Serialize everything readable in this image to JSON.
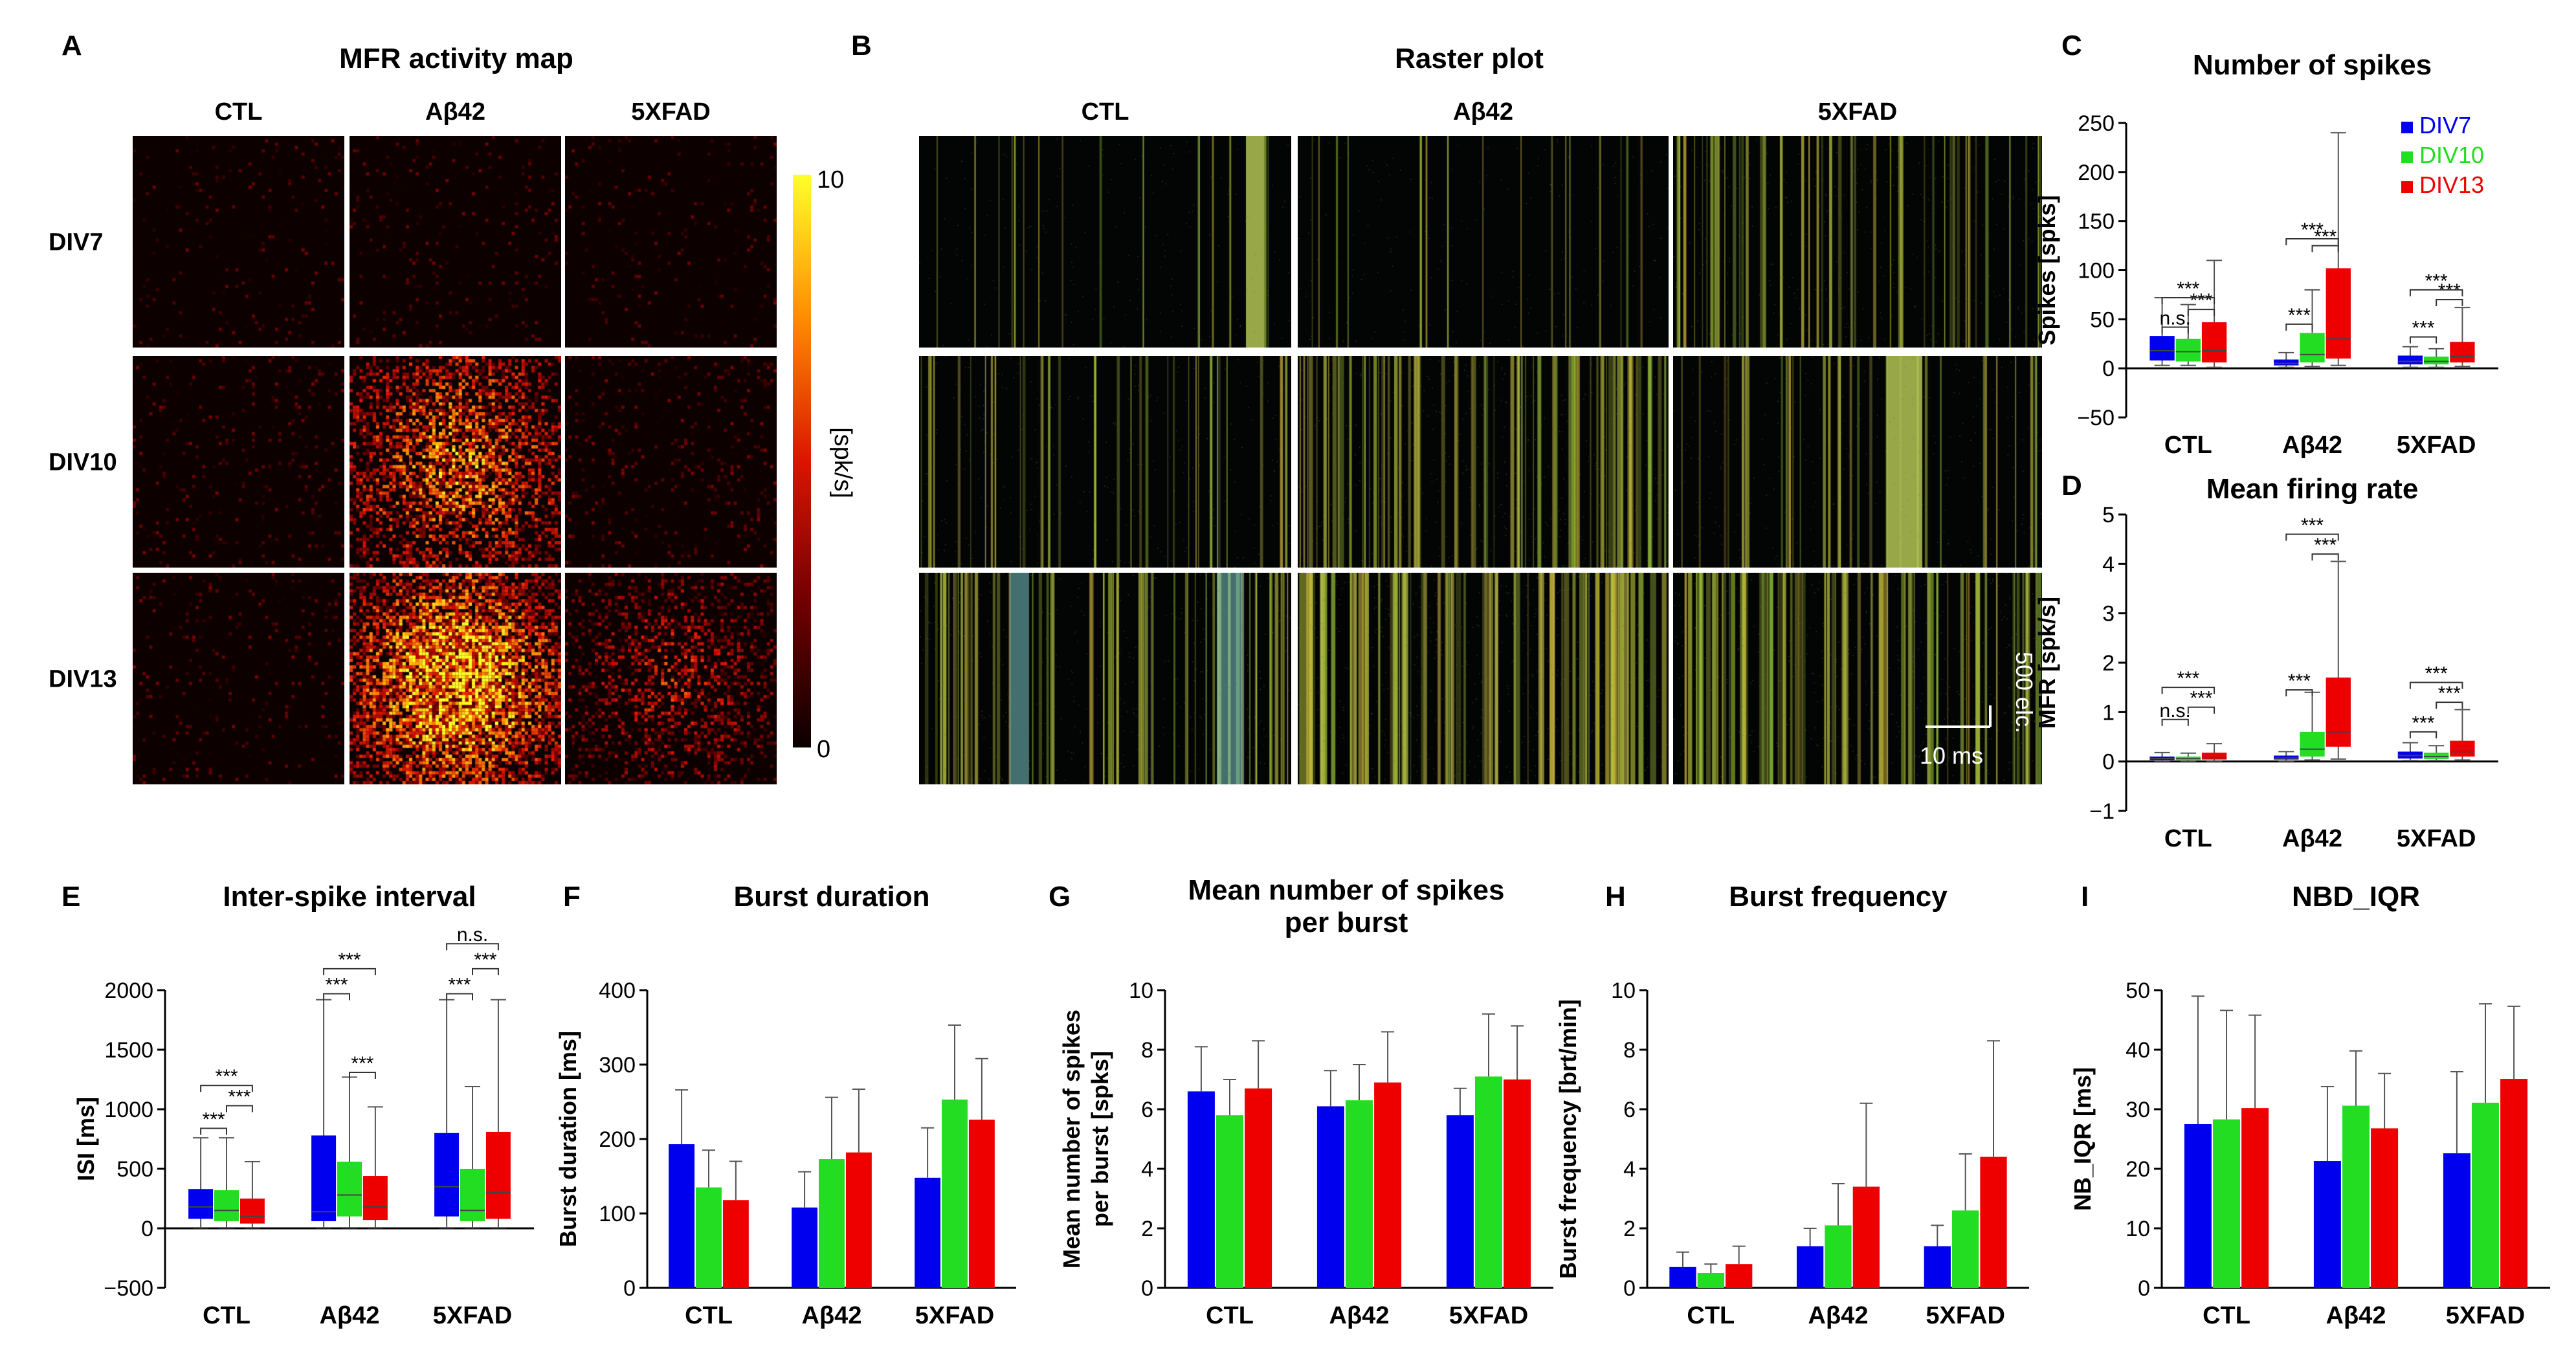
{
  "panels": {
    "A": {
      "letter": "A",
      "title": "MFR activity map",
      "cols": [
        "CTL",
        "Aβ42",
        "5XFAD"
      ],
      "rows": [
        "DIV7",
        "DIV10",
        "DIV13"
      ],
      "colorbar": {
        "min": "0",
        "max": "10",
        "label": "[spk/s]"
      },
      "density": [
        [
          0.02,
          0.03,
          0.02
        ],
        [
          0.04,
          0.55,
          0.06
        ],
        [
          0.04,
          0.85,
          0.35
        ]
      ]
    },
    "B": {
      "letter": "B",
      "title": "Raster plot",
      "cols": [
        "CTL",
        "Aβ42",
        "5XFAD"
      ],
      "scalebar_x": "10 ms",
      "scalebar_y": "500 elc."
    },
    "C": {
      "letter": "C"
    },
    "D": {
      "letter": "D"
    },
    "E": {
      "letter": "E"
    },
    "F": {
      "letter": "F"
    },
    "G": {
      "letter": "G"
    },
    "H": {
      "letter": "H"
    },
    "I": {
      "letter": "I"
    }
  },
  "colors": {
    "DIV7": "#0000ee",
    "DIV10": "#22dd22",
    "DIV13": "#ee0000"
  },
  "chart_data": [
    {
      "id": "C",
      "type": "box",
      "title": "Number of spikes",
      "ylabel": "Spikes [spks]",
      "ylim": [
        -50,
        250
      ],
      "yticks": [
        -50,
        0,
        50,
        100,
        150,
        200,
        250
      ],
      "categories": [
        "CTL",
        "Aβ42",
        "5XFAD"
      ],
      "legend": {
        "entries": [
          "DIV7",
          "DIV10",
          "DIV13"
        ],
        "placement": "top-right"
      },
      "series": [
        {
          "name": "DIV7",
          "boxes": [
            {
              "whislo": 3,
              "q1": 8,
              "med": 18,
              "q3": 33,
              "whishi": 72
            },
            {
              "whislo": 1,
              "q1": 3,
              "med": 5,
              "q3": 9,
              "whishi": 16
            },
            {
              "whislo": 1,
              "q1": 4,
              "med": 7,
              "q3": 13,
              "whishi": 22
            }
          ]
        },
        {
          "name": "DIV10",
          "boxes": [
            {
              "whislo": 3,
              "q1": 7,
              "med": 17,
              "q3": 30,
              "whishi": 65
            },
            {
              "whislo": 2,
              "q1": 6,
              "med": 14,
              "q3": 36,
              "whishi": 80
            },
            {
              "whislo": 1,
              "q1": 4,
              "med": 7,
              "q3": 12,
              "whishi": 20
            }
          ]
        },
        {
          "name": "DIV13",
          "boxes": [
            {
              "whislo": 1,
              "q1": 6,
              "med": 18,
              "q3": 47,
              "whishi": 110
            },
            {
              "whislo": 3,
              "q1": 10,
              "med": 30,
              "q3": 102,
              "whishi": 240
            },
            {
              "whislo": 2,
              "q1": 6,
              "med": 12,
              "q3": 27,
              "whishi": 62
            }
          ]
        }
      ],
      "annotations": [
        {
          "cat": 0,
          "from": 0,
          "to": 1,
          "label": "n.s.",
          "y": 42
        },
        {
          "cat": 0,
          "from": 1,
          "to": 2,
          "label": "***",
          "y": 60
        },
        {
          "cat": 0,
          "from": 0,
          "to": 2,
          "label": "***",
          "y": 72
        },
        {
          "cat": 1,
          "from": 0,
          "to": 1,
          "label": "***",
          "y": 45
        },
        {
          "cat": 1,
          "from": 1,
          "to": 2,
          "label": "***",
          "y": 125
        },
        {
          "cat": 1,
          "from": 0,
          "to": 2,
          "label": "***",
          "y": 132
        },
        {
          "cat": 2,
          "from": 0,
          "to": 1,
          "label": "***",
          "y": 32
        },
        {
          "cat": 2,
          "from": 1,
          "to": 2,
          "label": "***",
          "y": 70
        },
        {
          "cat": 2,
          "from": 0,
          "to": 2,
          "label": "***",
          "y": 80
        }
      ]
    },
    {
      "id": "D",
      "type": "box",
      "title": "Mean firing rate",
      "ylabel": "MFR [spk/s]",
      "ylim": [
        -1,
        5
      ],
      "yticks": [
        -1,
        0,
        1,
        2,
        3,
        4,
        5
      ],
      "categories": [
        "CTL",
        "Aβ42",
        "5XFAD"
      ],
      "series": [
        {
          "name": "DIV7",
          "boxes": [
            {
              "whislo": 0.01,
              "q1": 0.03,
              "med": 0.06,
              "q3": 0.1,
              "whishi": 0.18
            },
            {
              "whislo": 0.01,
              "q1": 0.04,
              "med": 0.07,
              "q3": 0.12,
              "whishi": 0.2
            },
            {
              "whislo": 0.02,
              "q1": 0.06,
              "med": 0.12,
              "q3": 0.2,
              "whishi": 0.38
            }
          ]
        },
        {
          "name": "DIV10",
          "boxes": [
            {
              "whislo": 0.01,
              "q1": 0.03,
              "med": 0.06,
              "q3": 0.1,
              "whishi": 0.17
            },
            {
              "whislo": 0.03,
              "q1": 0.1,
              "med": 0.25,
              "q3": 0.6,
              "whishi": 1.4
            },
            {
              "whislo": 0.02,
              "q1": 0.05,
              "med": 0.1,
              "q3": 0.18,
              "whishi": 0.32
            }
          ]
        },
        {
          "name": "DIV13",
          "boxes": [
            {
              "whislo": 0.01,
              "q1": 0.04,
              "med": 0.08,
              "q3": 0.18,
              "whishi": 0.36
            },
            {
              "whislo": 0.05,
              "q1": 0.3,
              "med": 0.6,
              "q3": 1.7,
              "whishi": 4.05
            },
            {
              "whislo": 0.03,
              "q1": 0.1,
              "med": 0.2,
              "q3": 0.42,
              "whishi": 1.05
            }
          ]
        }
      ],
      "annotations": [
        {
          "cat": 0,
          "from": 0,
          "to": 1,
          "label": "n.s.",
          "y": 0.85
        },
        {
          "cat": 0,
          "from": 1,
          "to": 2,
          "label": "***",
          "y": 1.1
        },
        {
          "cat": 0,
          "from": 0,
          "to": 2,
          "label": "***",
          "y": 1.5
        },
        {
          "cat": 1,
          "from": 0,
          "to": 1,
          "label": "***",
          "y": 1.45
        },
        {
          "cat": 1,
          "from": 1,
          "to": 2,
          "label": "***",
          "y": 4.2
        },
        {
          "cat": 1,
          "from": 0,
          "to": 2,
          "label": "***",
          "y": 4.6
        },
        {
          "cat": 2,
          "from": 0,
          "to": 1,
          "label": "***",
          "y": 0.6
        },
        {
          "cat": 2,
          "from": 1,
          "to": 2,
          "label": "***",
          "y": 1.2
        },
        {
          "cat": 2,
          "from": 0,
          "to": 2,
          "label": "***",
          "y": 1.6
        }
      ]
    },
    {
      "id": "E",
      "type": "box",
      "title": "Inter-spike interval",
      "ylabel": "ISI [ms]",
      "ylim": [
        -500,
        2000
      ],
      "yticks": [
        -500,
        0,
        500,
        1000,
        1500,
        2000
      ],
      "categories": [
        "CTL",
        "Aβ42",
        "5XFAD"
      ],
      "series": [
        {
          "name": "DIV7",
          "boxes": [
            {
              "whislo": 5,
              "q1": 80,
              "med": 180,
              "q3": 330,
              "whishi": 760
            },
            {
              "whislo": 5,
              "q1": 60,
              "med": 140,
              "q3": 780,
              "whishi": 1920
            },
            {
              "whislo": 5,
              "q1": 100,
              "med": 350,
              "q3": 800,
              "whishi": 1920
            }
          ]
        },
        {
          "name": "DIV10",
          "boxes": [
            {
              "whislo": 5,
              "q1": 60,
              "med": 150,
              "q3": 320,
              "whishi": 760
            },
            {
              "whislo": 5,
              "q1": 100,
              "med": 280,
              "q3": 560,
              "whishi": 1270
            },
            {
              "whislo": 5,
              "q1": 60,
              "med": 150,
              "q3": 500,
              "whishi": 1190
            }
          ]
        },
        {
          "name": "DIV13",
          "boxes": [
            {
              "whislo": 5,
              "q1": 40,
              "med": 100,
              "q3": 250,
              "whishi": 560
            },
            {
              "whislo": 5,
              "q1": 70,
              "med": 180,
              "q3": 440,
              "whishi": 1020
            },
            {
              "whislo": 5,
              "q1": 80,
              "med": 300,
              "q3": 810,
              "whishi": 1920
            }
          ]
        }
      ],
      "annotations": [
        {
          "cat": 0,
          "from": 0,
          "to": 1,
          "label": "***",
          "y": 840
        },
        {
          "cat": 0,
          "from": 1,
          "to": 2,
          "label": "***",
          "y": 1030
        },
        {
          "cat": 0,
          "from": 0,
          "to": 2,
          "label": "***",
          "y": 1200
        },
        {
          "cat": 1,
          "from": 0,
          "to": 1,
          "label": "***",
          "y": 1970
        },
        {
          "cat": 1,
          "from": 1,
          "to": 2,
          "label": "***",
          "y": 1310
        },
        {
          "cat": 1,
          "from": 0,
          "to": 2,
          "label": "***",
          "y": 2180
        },
        {
          "cat": 2,
          "from": 0,
          "to": 1,
          "label": "***",
          "y": 1970
        },
        {
          "cat": 2,
          "from": 1,
          "to": 2,
          "label": "***",
          "y": 2180
        },
        {
          "cat": 2,
          "from": 0,
          "to": 2,
          "label": "n.s.",
          "y": 2390
        }
      ]
    },
    {
      "id": "F",
      "type": "bar",
      "title": "Burst duration",
      "ylabel": "Burst duration [ms]",
      "ylim": [
        0,
        400
      ],
      "yticks": [
        0,
        100,
        200,
        300,
        400
      ],
      "categories": [
        "CTL",
        "Aβ42",
        "5XFAD"
      ],
      "series": [
        {
          "name": "DIV7",
          "values": [
            193,
            108,
            148
          ],
          "errors": [
            73,
            48,
            67
          ]
        },
        {
          "name": "DIV10",
          "values": [
            135,
            173,
            253
          ],
          "errors": [
            50,
            83,
            100
          ]
        },
        {
          "name": "DIV13",
          "values": [
            118,
            182,
            226
          ],
          "errors": [
            52,
            85,
            82
          ]
        }
      ]
    },
    {
      "id": "G",
      "type": "bar",
      "title": "Mean number of spikes per burst",
      "ylabel": "Mean number of spikes per burst [spks]",
      "ylim": [
        0,
        10
      ],
      "yticks": [
        0,
        2,
        4,
        6,
        8,
        10
      ],
      "categories": [
        "CTL",
        "Aβ42",
        "5XFAD"
      ],
      "series": [
        {
          "name": "DIV7",
          "values": [
            6.6,
            6.1,
            5.8
          ],
          "errors": [
            1.5,
            1.2,
            0.9
          ]
        },
        {
          "name": "DIV10",
          "values": [
            5.8,
            6.3,
            7.1
          ],
          "errors": [
            1.2,
            1.2,
            2.1
          ]
        },
        {
          "name": "DIV13",
          "values": [
            6.7,
            6.9,
            7.0
          ],
          "errors": [
            1.6,
            1.7,
            1.8
          ]
        }
      ]
    },
    {
      "id": "H",
      "type": "bar",
      "title": "Burst frequency",
      "ylabel": "Burst frequency [brt/min]",
      "ylim": [
        0,
        10
      ],
      "yticks": [
        0,
        2,
        4,
        6,
        8,
        10
      ],
      "categories": [
        "CTL",
        "Aβ42",
        "5XFAD"
      ],
      "series": [
        {
          "name": "DIV7",
          "values": [
            0.7,
            1.4,
            1.4
          ],
          "errors": [
            0.5,
            0.6,
            0.7
          ]
        },
        {
          "name": "DIV10",
          "values": [
            0.5,
            2.1,
            2.6
          ],
          "errors": [
            0.3,
            1.4,
            1.9
          ]
        },
        {
          "name": "DIV13",
          "values": [
            0.8,
            3.4,
            4.4
          ],
          "errors": [
            0.6,
            2.8,
            3.9
          ]
        }
      ]
    },
    {
      "id": "I",
      "type": "bar",
      "title": "NBD_IQR",
      "ylabel": "NB_IQR [ms]",
      "ylim": [
        0,
        50
      ],
      "yticks": [
        0,
        10,
        20,
        30,
        40,
        50
      ],
      "categories": [
        "CTL",
        "Aβ42",
        "5XFAD"
      ],
      "series": [
        {
          "name": "DIV7",
          "values": [
            27.5,
            21.3,
            22.6
          ],
          "errors": [
            21.5,
            12.5,
            13.7
          ]
        },
        {
          "name": "DIV10",
          "values": [
            28.3,
            30.6,
            31.1
          ],
          "errors": [
            18.3,
            9.2,
            16.6
          ]
        },
        {
          "name": "DIV13",
          "values": [
            30.2,
            26.8,
            35.1
          ],
          "errors": [
            15.6,
            9.2,
            12.2
          ]
        }
      ]
    }
  ]
}
